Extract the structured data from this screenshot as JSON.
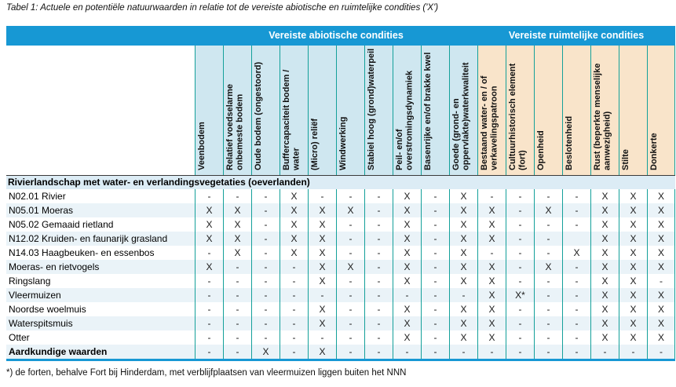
{
  "title": "Tabel 1: Actuele en potentiële natuurwaarden in relatie tot de vereiste abiotische en ruimtelijke condities ('X')",
  "footnote": "*) de forten, behalve Fort bij Hinderdam, met verblijfplaatsen van vleermuizen liggen buiten het NNN",
  "colors": {
    "band_blue": "#1798d4",
    "abiotic_header_tint": "#cfe7f0",
    "spatial_header_tint": "#f9e4ca",
    "column_separator_teal": "#14a09a",
    "row_stripe": "#eaf3f8",
    "section_row_bg": "#dcecf5"
  },
  "groups": {
    "abiotic": {
      "label": "Vereiste abiotische condities",
      "column_count": 10
    },
    "spatial": {
      "label": "Vereiste ruimtelijke condities",
      "column_count": 7
    }
  },
  "columns": [
    {
      "label": "Veenbodem",
      "group": "abiotic"
    },
    {
      "label": "Relatief voedselarme onbemeste bodem",
      "group": "abiotic"
    },
    {
      "label": "Oude bodem (ongestoord)",
      "group": "abiotic"
    },
    {
      "label": "Buffercapaciteit bodem / water",
      "group": "abiotic"
    },
    {
      "label": "(Micro) reliëf",
      "group": "abiotic"
    },
    {
      "label": "Windwerking",
      "group": "abiotic"
    },
    {
      "label": "Stabiel hoog (grond)waterpeil",
      "group": "abiotic"
    },
    {
      "label": "Peil- en/of overstromingsdynamiek",
      "group": "abiotic"
    },
    {
      "label": "Basenrijke en/of brakke kwel",
      "group": "abiotic"
    },
    {
      "label": "Goede (grond- en oppervlakte)waterkwaliteit",
      "group": "abiotic"
    },
    {
      "label": "Bestaand water- en / of verkavelingspatroon",
      "group": "spatial"
    },
    {
      "label": "Cultuurhistorisch element (fort)",
      "group": "spatial"
    },
    {
      "label": "Openheid",
      "group": "spatial"
    },
    {
      "label": "Beslotenheid",
      "group": "spatial"
    },
    {
      "label": "Rust (beperkte menselijke aanwezigheid)",
      "group": "spatial"
    },
    {
      "label": "Stilte",
      "group": "spatial"
    },
    {
      "label": "Donkerte",
      "group": "spatial"
    }
  ],
  "section_header": "Rivierlandschap met water- en verlandingsvegetaties (oeverlanden)",
  "rows": [
    {
      "label": "N02.01 Rivier",
      "bold": false,
      "values": [
        "-",
        "-",
        "-",
        "X",
        "-",
        "-",
        "-",
        "X",
        "-",
        "X",
        "-",
        "-",
        "-",
        "-",
        "X",
        "X",
        "X"
      ]
    },
    {
      "label": "N05.01 Moeras",
      "bold": false,
      "values": [
        "X",
        "X",
        "-",
        "X",
        "X",
        "X",
        "-",
        "X",
        "-",
        "X",
        "X",
        "-",
        "X",
        "-",
        "X",
        "X",
        "X"
      ]
    },
    {
      "label": "N05.02 Gemaaid rietland",
      "bold": false,
      "values": [
        "X",
        "X",
        "-",
        "X",
        "X",
        "-",
        "-",
        "X",
        "-",
        "X",
        "X",
        "-",
        "-",
        "-",
        "X",
        "X",
        "X"
      ]
    },
    {
      "label": "N12.02 Kruiden- en faunarijk grasland",
      "bold": false,
      "values": [
        "X",
        "X",
        "-",
        "X",
        "X",
        "-",
        "-",
        "X",
        "-",
        "X",
        "X",
        "-",
        "-",
        "",
        "X",
        "X",
        "X"
      ]
    },
    {
      "label": "N14.03 Haagbeuken- en essenbos",
      "bold": false,
      "values": [
        "-",
        "X",
        "-",
        "X",
        "X",
        "-",
        "-",
        "X",
        "-",
        "X",
        "-",
        "-",
        "-",
        "X",
        "X",
        "X",
        "X"
      ]
    },
    {
      "label": "Moeras- en rietvogels",
      "bold": false,
      "values": [
        "X",
        "-",
        "-",
        "-",
        "X",
        "X",
        "-",
        "X",
        "-",
        "X",
        "X",
        "-",
        "X",
        "-",
        "X",
        "X",
        "X"
      ]
    },
    {
      "label": "Ringslang",
      "bold": false,
      "values": [
        "-",
        "-",
        "-",
        "-",
        "X",
        "-",
        "-",
        "X",
        "-",
        "X",
        "X",
        "-",
        "-",
        "-",
        "X",
        "X",
        "-"
      ]
    },
    {
      "label": "Vleermuizen",
      "bold": false,
      "values": [
        "-",
        "-",
        "-",
        "-",
        "-",
        "-",
        "-",
        "-",
        "-",
        "-",
        "X",
        "X*",
        "-",
        "-",
        "X",
        "X",
        "X"
      ]
    },
    {
      "label": "Noordse woelmuis",
      "bold": false,
      "values": [
        "-",
        "-",
        "-",
        "-",
        "X",
        "-",
        "-",
        "X",
        "-",
        "X",
        "X",
        "-",
        "-",
        "-",
        "X",
        "X",
        "X"
      ]
    },
    {
      "label": "Waterspitsmuis",
      "bold": false,
      "values": [
        "-",
        "-",
        "-",
        "-",
        "X",
        "-",
        "-",
        "X",
        "-",
        "X",
        "X",
        "-",
        "-",
        "-",
        "X",
        "X",
        "X"
      ]
    },
    {
      "label": "Otter",
      "bold": false,
      "values": [
        "-",
        "-",
        "-",
        "-",
        "-",
        "-",
        "-",
        "X",
        "-",
        "X",
        "X",
        "-",
        "-",
        "-",
        "X",
        "X",
        "X"
      ]
    },
    {
      "label": "Aardkundige waarden",
      "bold": true,
      "values": [
        "-",
        "-",
        "X",
        "-",
        "X",
        "-",
        "-",
        "-",
        "-",
        "-",
        "-",
        "-",
        "-",
        "-",
        "-",
        "-",
        "-"
      ]
    }
  ]
}
